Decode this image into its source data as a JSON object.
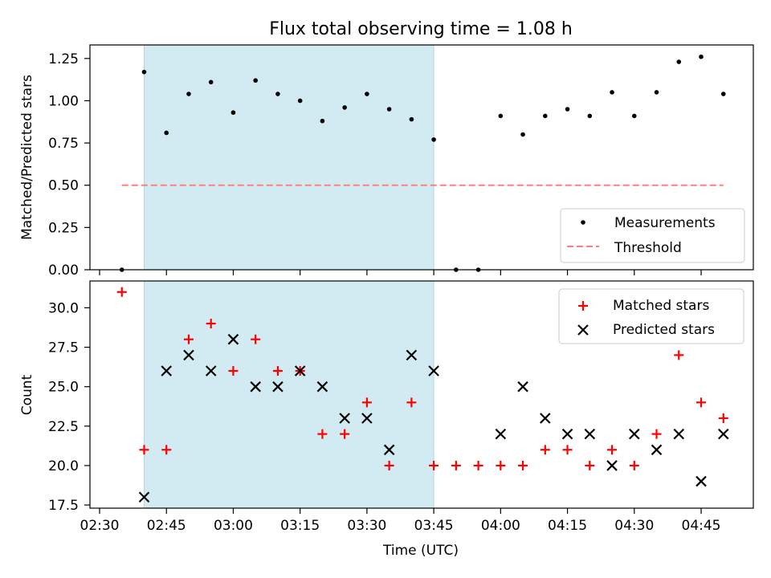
{
  "title": "Flux total observing time = 1.08 h",
  "xlabel": "Time (UTC)",
  "x_tick_labels": [
    "02:30",
    "02:45",
    "03:00",
    "03:15",
    "03:30",
    "03:45",
    "04:00",
    "04:15",
    "04:30",
    "04:45"
  ],
  "chart_data": [
    {
      "type": "scatter",
      "ylabel": "Matched/Predicted stars",
      "ylim": [
        0,
        1.33
      ],
      "yticks": [
        "0.00",
        "0.25",
        "0.50",
        "0.75",
        "1.00",
        "1.25"
      ],
      "shaded_region": {
        "x": [
          "02:40",
          "03:45"
        ],
        "color": "#add8e6"
      },
      "legend": {
        "placement": "lower right",
        "entries": [
          "Measurements",
          "Threshold"
        ]
      },
      "series": [
        {
          "name": "Measurements",
          "marker": "dot",
          "color": "#000000",
          "x": [
            "02:35",
            "02:40",
            "02:45",
            "02:50",
            "02:55",
            "03:00",
            "03:05",
            "03:10",
            "03:15",
            "03:20",
            "03:25",
            "03:30",
            "03:35",
            "03:40",
            "03:45",
            "03:50",
            "03:55",
            "04:00",
            "04:05",
            "04:10",
            "04:15",
            "04:20",
            "04:25",
            "04:30",
            "04:35",
            "04:40",
            "04:45",
            "04:50"
          ],
          "y": [
            0,
            1.17,
            0.81,
            1.04,
            1.11,
            0.93,
            1.12,
            1.04,
            1.0,
            0.88,
            0.96,
            1.04,
            0.95,
            0.89,
            0.77,
            0,
            0,
            0.91,
            0.8,
            0.91,
            0.95,
            0.91,
            1.05,
            0.91,
            1.05,
            1.23,
            1.26,
            1.04
          ]
        },
        {
          "name": "Threshold",
          "style": "dashed",
          "color": "#ff7f7f",
          "x": [
            "02:35",
            "04:50"
          ],
          "y": [
            0.5,
            0.5
          ]
        }
      ]
    },
    {
      "type": "scatter",
      "ylabel": "Count",
      "ylim": [
        17.3,
        31.7
      ],
      "yticks": [
        "17.5",
        "20.0",
        "22.5",
        "25.0",
        "27.5",
        "30.0"
      ],
      "shaded_region": {
        "x": [
          "02:40",
          "03:45"
        ],
        "color": "#add8e6"
      },
      "legend": {
        "placement": "upper right",
        "entries": [
          "Matched stars",
          "Predicted stars"
        ]
      },
      "series": [
        {
          "name": "Matched stars",
          "marker": "+",
          "color": "#ff0000",
          "x": [
            "02:35",
            "02:40",
            "02:45",
            "02:50",
            "02:55",
            "03:00",
            "03:05",
            "03:10",
            "03:15",
            "03:20",
            "03:25",
            "03:30",
            "03:35",
            "03:40",
            "03:45",
            "03:50",
            "03:55",
            "04:00",
            "04:05",
            "04:10",
            "04:15",
            "04:20",
            "04:25",
            "04:30",
            "04:35",
            "04:40",
            "04:45",
            "04:50"
          ],
          "y": [
            31,
            21,
            21,
            28,
            29,
            26,
            28,
            26,
            26,
            22,
            22,
            24,
            20,
            24,
            20,
            20,
            20,
            20,
            20,
            21,
            21,
            20,
            21,
            20,
            22,
            27,
            24,
            23
          ]
        },
        {
          "name": "Predicted stars",
          "marker": "x",
          "color": "#000000",
          "x": [
            "02:40",
            "02:45",
            "02:50",
            "02:55",
            "03:00",
            "03:05",
            "03:10",
            "03:15",
            "03:20",
            "03:25",
            "03:30",
            "03:35",
            "03:40",
            "03:45",
            "04:00",
            "04:05",
            "04:10",
            "04:15",
            "04:20",
            "04:25",
            "04:30",
            "04:35",
            "04:40",
            "04:45",
            "04:50"
          ],
          "y": [
            18,
            26,
            27,
            26,
            28,
            25,
            25,
            26,
            25,
            23,
            23,
            21,
            27,
            26,
            22,
            25,
            23,
            22,
            22,
            20,
            22,
            21,
            22,
            19,
            22
          ]
        }
      ]
    }
  ]
}
